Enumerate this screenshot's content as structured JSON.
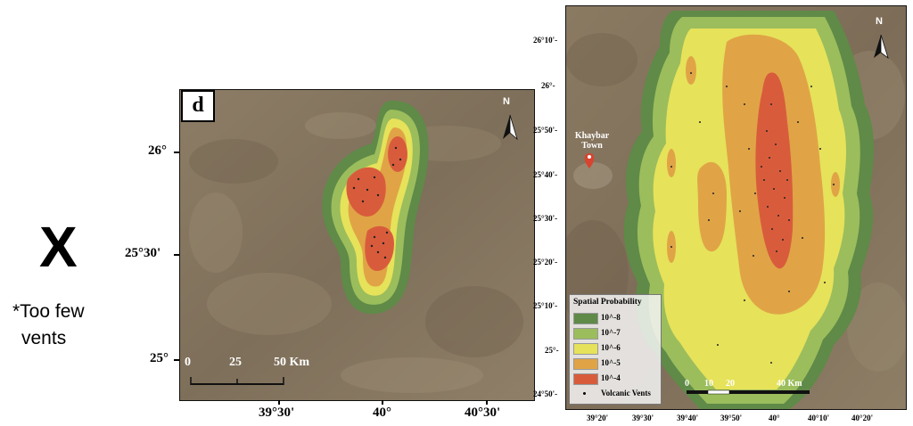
{
  "left_note": {
    "mark": "X",
    "line1": "*Too few",
    "line2": "vents"
  },
  "panel_d": {
    "label": "d",
    "north": "N",
    "lat_labels": [
      "26°",
      "25°30'",
      "25°"
    ],
    "lon_labels": [
      "39°30'",
      "40°",
      "40°30'"
    ],
    "scale": {
      "ticks": [
        "0",
        "25",
        "50 Km"
      ]
    }
  },
  "panel_right": {
    "north": "N",
    "town": [
      "Khaybar",
      "Town"
    ],
    "lat_labels": [
      "26°10'-",
      "26°-",
      "25°50'-",
      "25°40'-",
      "25°30'-",
      "25°20'-",
      "25°10'-",
      "25°-",
      "24°50'-"
    ],
    "lon_labels": [
      "39°20'",
      "39°30'",
      "39°40'",
      "39°50'",
      "40°",
      "40°10'",
      "40°20'"
    ],
    "scale": {
      "ticks": [
        "0",
        "10",
        "20",
        "40 Km"
      ]
    },
    "legend": {
      "title": "Spatial Probability",
      "items": [
        {
          "label": "10^-8",
          "color": "#5f8a47"
        },
        {
          "label": "10^-7",
          "color": "#9bbd5c"
        },
        {
          "label": "10^-6",
          "color": "#e6e25a"
        },
        {
          "label": "10^-5",
          "color": "#e0a446"
        },
        {
          "label": "10^-4",
          "color": "#d85c3c"
        }
      ],
      "vents_label": "Volcanic Vents"
    }
  },
  "colors": {
    "terrain": "#8a7a63",
    "zone_8": "#5f8a47",
    "zone_7": "#9bbd5c",
    "zone_6": "#e6e25a",
    "zone_5": "#e0a446",
    "zone_4": "#d85c3c"
  }
}
